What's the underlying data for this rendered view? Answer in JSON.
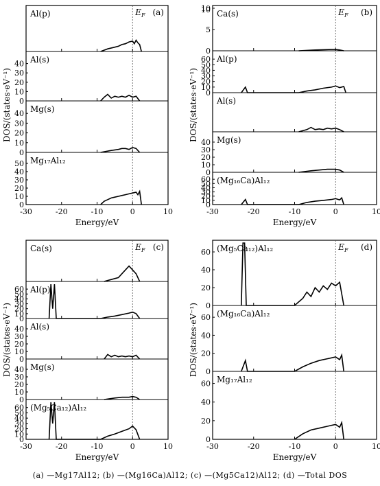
{
  "caption": "(a) —Mg17Al12; (b) —(Mg16Ca)Al12; (c) —(Mg5Ca12)Al12; (d) —Total DOS",
  "colors": {
    "curve": "#000000",
    "fermi": "#555555"
  },
  "chart_data": [
    {
      "type": "line",
      "panel": "(a)",
      "fermi_label": "E_F",
      "xlabel": "Energy/eV",
      "ylabel": "DOS/(states·eV⁻¹)",
      "xlim": [
        -30,
        10
      ],
      "x_ticks": [
        -30,
        -20,
        -10,
        0,
        10
      ],
      "subplots": [
        {
          "label": "Al(p)",
          "ylim": [
            0,
            50
          ],
          "y_ticks": [],
          "series": [
            {
              "x": [
                -9,
                -7,
                -5,
                -4,
                -3,
                -2,
                -1,
                0,
                0.5,
                1,
                1.5,
                2,
                2.5
              ],
              "y": [
                0,
                3,
                5,
                6,
                8,
                9,
                11,
                12,
                9,
                13,
                10,
                8,
                0
              ]
            }
          ]
        },
        {
          "label": "Al(s)",
          "ylim": [
            0,
            50
          ],
          "y_ticks": [
            0,
            10,
            20,
            30,
            40
          ],
          "series": [
            {
              "x": [
                -9,
                -8,
                -7,
                -6,
                -5,
                -4,
                -3,
                -2,
                -1,
                0,
                1,
                2
              ],
              "y": [
                0,
                4,
                7,
                3,
                5,
                4,
                5,
                4,
                6,
                4,
                5,
                0
              ]
            }
          ]
        },
        {
          "label": "Mg(s)",
          "ylim": [
            0,
            50
          ],
          "y_ticks": [
            0,
            10,
            20,
            30,
            40
          ],
          "series": [
            {
              "x": [
                -9,
                -6,
                -4,
                -3,
                -2,
                -1,
                0,
                1,
                2
              ],
              "y": [
                0,
                2,
                3,
                4,
                4,
                3,
                5,
                4,
                0
              ]
            }
          ]
        },
        {
          "label": "Mg₁₇Al₁₂",
          "ylim": [
            0,
            60
          ],
          "y_ticks": [
            0,
            10,
            20,
            30,
            40,
            50
          ],
          "series": [
            {
              "x": [
                -9,
                -8,
                -7,
                -6,
                -5,
                -4,
                -3,
                -2,
                -1,
                0,
                1,
                1.5,
                2,
                2.5
              ],
              "y": [
                0,
                4,
                6,
                8,
                9,
                10,
                11,
                12,
                13,
                14,
                15,
                12,
                16,
                0
              ]
            }
          ]
        }
      ]
    },
    {
      "type": "line",
      "panel": "(b)",
      "fermi_label": "E_F",
      "xlabel": "Energy/eV",
      "ylabel": "DOS/(states·eV⁻¹)",
      "xlim": [
        -30,
        10
      ],
      "x_ticks": [
        -30,
        -20,
        -10,
        0,
        10
      ],
      "top_y_tick": 10,
      "subplots": [
        {
          "label": "Ca(s)",
          "ylim": [
            0,
            10
          ],
          "y_ticks": [
            0,
            5,
            10
          ],
          "series": [
            {
              "x": [
                -9,
                -5,
                -1,
                0,
                1,
                2
              ],
              "y": [
                0,
                0.2,
                0.3,
                0.3,
                0.2,
                0
              ]
            }
          ]
        },
        {
          "label": "Al(p)",
          "ylim": [
            0,
            70
          ],
          "y_ticks": [
            0,
            10,
            20,
            30,
            40,
            50,
            60
          ],
          "series": [
            {
              "x": [
                -23,
                -22,
                -21.5,
                -9,
                -7,
                -5,
                -3,
                -1,
                0,
                1,
                2,
                2.5
              ],
              "y": [
                0,
                10,
                0,
                0,
                3,
                5,
                8,
                10,
                12,
                9,
                11,
                0
              ]
            }
          ]
        },
        {
          "label": "Al(s)",
          "ylim": [
            0,
            50
          ],
          "y_ticks": [],
          "series": [
            {
              "x": [
                -9,
                -7,
                -6,
                -5,
                -4,
                -3,
                -2,
                -1,
                0,
                1,
                2
              ],
              "y": [
                0,
                3,
                6,
                3,
                4,
                3,
                5,
                4,
                5,
                3,
                0
              ]
            }
          ]
        },
        {
          "label": "Mg(s)",
          "ylim": [
            0,
            50
          ],
          "y_ticks": [
            0,
            10,
            20,
            30,
            40
          ],
          "series": [
            {
              "x": [
                -9,
                -6,
                -4,
                -2,
                0,
                1,
                2
              ],
              "y": [
                0,
                2,
                3,
                4,
                4,
                3,
                0
              ]
            }
          ]
        },
        {
          "label": "(Mg₁₆Ca)Al₁₂",
          "ylim": [
            0,
            70
          ],
          "y_ticks": [
            0,
            10,
            20,
            30,
            40,
            50,
            60
          ],
          "series": [
            {
              "x": [
                -23,
                -22,
                -21.5,
                -9,
                -7,
                -5,
                -3,
                -1,
                0,
                1,
                1.5,
                2
              ],
              "y": [
                0,
                12,
                0,
                0,
                5,
                8,
                10,
                12,
                14,
                11,
                16,
                0
              ]
            }
          ]
        }
      ]
    },
    {
      "type": "line",
      "panel": "(c)",
      "fermi_label": "E_F",
      "xlabel": "Energy/eV",
      "ylabel": "DOS/(states·eV⁻¹)",
      "xlim": [
        -30,
        10
      ],
      "x_ticks": [
        -30,
        -20,
        -10,
        0,
        10
      ],
      "subplots": [
        {
          "label": "Ca(s)",
          "ylim": [
            0,
            10
          ],
          "y_ticks": [],
          "series": [
            {
              "x": [
                -8,
                -6,
                -4,
                -3,
                -2,
                -1,
                0,
                1,
                2
              ],
              "y": [
                0,
                0.5,
                1,
                2,
                3,
                4,
                3,
                2,
                0
              ]
            }
          ]
        },
        {
          "label": "Al(p)",
          "ylim": [
            0,
            70
          ],
          "y_ticks": [
            0,
            10,
            20,
            30,
            40,
            50,
            60
          ],
          "series": [
            {
              "x": [
                -23.5,
                -23,
                -22.5,
                -22,
                -21.5,
                -9,
                -7,
                -5,
                -3,
                -1,
                0,
                1,
                2
              ],
              "y": [
                0,
                70,
                20,
                70,
                0,
                0,
                3,
                5,
                8,
                11,
                13,
                10,
                0
              ]
            }
          ]
        },
        {
          "label": "Al(s)",
          "ylim": [
            0,
            50
          ],
          "y_ticks": [
            0,
            10,
            20,
            30,
            40
          ],
          "series": [
            {
              "x": [
                -8,
                -7,
                -6,
                -5,
                -4,
                -3,
                -2,
                -1,
                0,
                1,
                2
              ],
              "y": [
                0,
                6,
                3,
                5,
                3,
                4,
                3,
                4,
                3,
                5,
                0
              ]
            }
          ]
        },
        {
          "label": "Mg(s)",
          "ylim": [
            0,
            50
          ],
          "y_ticks": [
            0,
            10,
            20,
            30,
            40
          ],
          "series": [
            {
              "x": [
                -8,
                -5,
                -3,
                -1,
                0,
                1,
                2
              ],
              "y": [
                0,
                2,
                3,
                3,
                4,
                3,
                0
              ]
            }
          ]
        },
        {
          "label": "(Mg₅Ca₁₂)Al₁₂",
          "ylim": [
            0,
            70
          ],
          "y_ticks": [
            0,
            10,
            20,
            30,
            40,
            50,
            60
          ],
          "series": [
            {
              "x": [
                -23.5,
                -23,
                -22.5,
                -22,
                -21.5,
                -9,
                -7,
                -5,
                -3,
                -1,
                0,
                1,
                2
              ],
              "y": [
                0,
                70,
                30,
                70,
                0,
                0,
                6,
                10,
                15,
                20,
                25,
                18,
                0
              ]
            }
          ]
        }
      ]
    },
    {
      "type": "line",
      "panel": "(d)",
      "fermi_label": "E_F",
      "xlabel": "Energy/eV",
      "ylabel": "DOS/(states·eV⁻¹)",
      "xlim": [
        -30,
        10
      ],
      "x_ticks": [
        -30,
        -20,
        -10,
        0,
        10
      ],
      "subplots": [
        {
          "label": "(Mg₅Ca₁₂)Al₁₂",
          "ylim": [
            0,
            70
          ],
          "y_ticks": [
            0,
            20,
            40,
            60
          ],
          "series": [
            {
              "x": [
                -23,
                -22.6,
                -22.2,
                -21.8,
                -10,
                -8,
                -7,
                -6,
                -5,
                -4,
                -3,
                -2,
                -1,
                0,
                1,
                2
              ],
              "y": [
                0,
                70,
                70,
                0,
                0,
                8,
                15,
                10,
                20,
                15,
                22,
                18,
                25,
                22,
                26,
                0
              ]
            }
          ]
        },
        {
          "label": "(Mg₁₆Ca)Al₁₂",
          "ylim": [
            0,
            70
          ],
          "y_ticks": [
            0,
            20,
            40,
            60
          ],
          "series": [
            {
              "x": [
                -23,
                -22,
                -21.5,
                -10,
                -8,
                -6,
                -4,
                -2,
                -1,
                0,
                1,
                1.5,
                2
              ],
              "y": [
                0,
                12,
                0,
                0,
                5,
                9,
                12,
                14,
                15,
                16,
                13,
                18,
                0
              ]
            }
          ]
        },
        {
          "label": "Mg₁₇Al₁₂",
          "ylim": [
            0,
            70
          ],
          "y_ticks": [
            0,
            20,
            40,
            60
          ],
          "series": [
            {
              "x": [
                -10,
                -8,
                -6,
                -4,
                -2,
                -1,
                0,
                1,
                1.5,
                2
              ],
              "y": [
                0,
                6,
                10,
                12,
                14,
                15,
                16,
                13,
                18,
                0
              ]
            }
          ]
        }
      ]
    }
  ]
}
